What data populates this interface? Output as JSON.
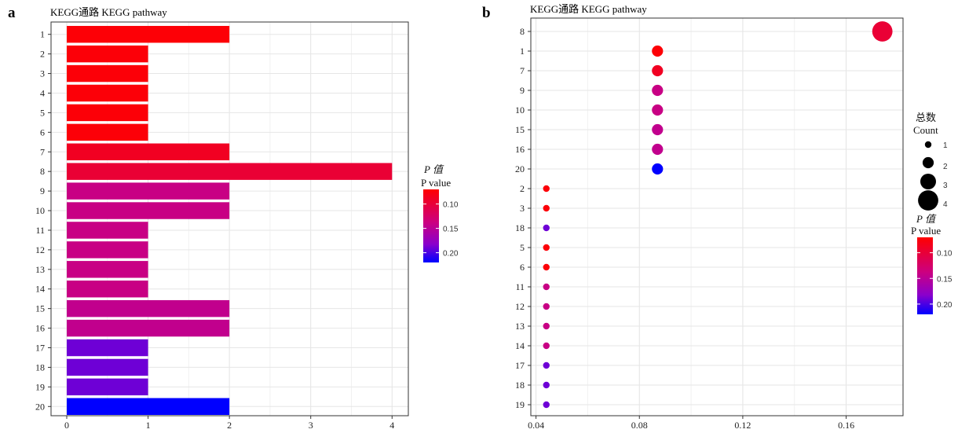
{
  "panel_a": {
    "letter": "a",
    "title": "KEGG通路 KEGG pathway",
    "legend": {
      "title_line1": "P 值",
      "title_line2": "P value"
    }
  },
  "panel_b": {
    "letter": "b",
    "title": "KEGG通路 KEGG pathway",
    "size_legend": {
      "title_line1": "总数",
      "title_line2": "Count"
    },
    "color_legend": {
      "title_line1": "P 值",
      "title_line2": "P value"
    }
  },
  "colors": {
    "low_p": "#ff0000",
    "high_p": "#0000ff",
    "grid": "#e6e6e6"
  },
  "chart_data": [
    {
      "type": "bar",
      "orientation": "horizontal",
      "title": "KEGG通路 KEGG pathway",
      "categories": [
        "1",
        "2",
        "3",
        "4",
        "5",
        "6",
        "7",
        "8",
        "9",
        "10",
        "11",
        "12",
        "13",
        "14",
        "15",
        "16",
        "17",
        "18",
        "19",
        "20"
      ],
      "values": [
        2,
        1,
        1,
        1,
        1,
        1,
        2,
        4,
        2,
        2,
        1,
        1,
        1,
        1,
        2,
        2,
        1,
        1,
        1,
        2
      ],
      "p_values": [
        0.073,
        0.074,
        0.074,
        0.074,
        0.074,
        0.074,
        0.088,
        0.098,
        0.14,
        0.14,
        0.14,
        0.14,
        0.14,
        0.14,
        0.145,
        0.145,
        0.19,
        0.19,
        0.19,
        0.22
      ],
      "xlim": [
        0,
        4.2
      ],
      "xticks": [
        0,
        1,
        2,
        3,
        4
      ],
      "legend": {
        "title": "P 值 P value",
        "ticks": [
          0.1,
          0.15,
          0.2
        ],
        "range": [
          0.07,
          0.22
        ],
        "placement": "right"
      },
      "grid": true
    },
    {
      "type": "scatter",
      "title": "KEGG通路 KEGG pathway",
      "categories": [
        "8",
        "1",
        "7",
        "9",
        "10",
        "15",
        "16",
        "20",
        "2",
        "3",
        "18",
        "5",
        "6",
        "11",
        "12",
        "13",
        "14",
        "17",
        "18",
        "19"
      ],
      "x": [
        0.174,
        0.087,
        0.087,
        0.087,
        0.087,
        0.087,
        0.087,
        0.087,
        0.044,
        0.044,
        0.044,
        0.044,
        0.044,
        0.044,
        0.044,
        0.044,
        0.044,
        0.044,
        0.044,
        0.044
      ],
      "count": [
        4,
        2,
        2,
        2,
        2,
        2,
        2,
        2,
        1,
        1,
        1,
        1,
        1,
        1,
        1,
        1,
        1,
        1,
        1,
        1
      ],
      "p_values": [
        0.098,
        0.073,
        0.088,
        0.14,
        0.14,
        0.145,
        0.145,
        0.22,
        0.074,
        0.074,
        0.19,
        0.074,
        0.074,
        0.14,
        0.14,
        0.14,
        0.14,
        0.19,
        0.19,
        0.19
      ],
      "xlim": [
        0.038,
        0.182
      ],
      "xticks": [
        0.04,
        0.08,
        0.12,
        0.16
      ],
      "xtick_labels": [
        "0.04",
        "0.08",
        "0.12",
        "0.16"
      ],
      "size_legend": {
        "title": "总数 Count",
        "values": [
          1,
          2,
          3,
          4
        ],
        "placement": "right"
      },
      "color_legend": {
        "title": "P 值 P value",
        "ticks": [
          0.1,
          0.15,
          0.2
        ],
        "range": [
          0.07,
          0.22
        ],
        "placement": "right"
      },
      "grid": true
    }
  ]
}
